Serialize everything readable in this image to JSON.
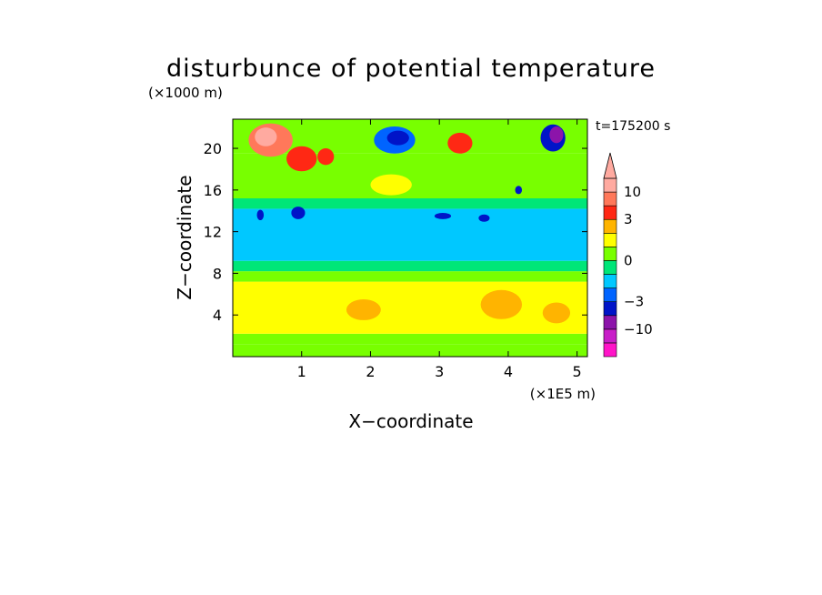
{
  "chart_data": {
    "type": "heatmap",
    "title": "disturbunce of potential temperature",
    "y_unit_label": "(×1000 m)",
    "x_unit_label": "(×1E5 m)",
    "xlabel": "X−coordinate",
    "ylabel": "Z−coordinate",
    "time_label": "t=175200 s",
    "xlim": [
      0,
      5.15
    ],
    "ylim": [
      0,
      22.8
    ],
    "x_ticks": [
      1,
      2,
      3,
      4,
      5
    ],
    "y_ticks": [
      4,
      8,
      12,
      16,
      20
    ],
    "x_tick_labels": [
      "1",
      "2",
      "3",
      "4",
      "5"
    ],
    "y_tick_labels": [
      "4",
      "8",
      "12",
      "16",
      "20"
    ],
    "bands": [
      {
        "z": [
          0,
          1.2
        ],
        "value": 0.5
      },
      {
        "z": [
          1.2,
          2.2
        ],
        "value": 0.9
      },
      {
        "z": [
          2.2,
          7.2
        ],
        "value": 1.4
      },
      {
        "z": [
          7.2,
          8.2
        ],
        "value": 0.5
      },
      {
        "z": [
          8.2,
          9.2
        ],
        "value": -0.4
      },
      {
        "z": [
          9.2,
          14.2
        ],
        "value": -1.2
      },
      {
        "z": [
          14.2,
          15.2
        ],
        "value": -0.4
      },
      {
        "z": [
          15.2,
          19.5
        ],
        "value": 0.8
      },
      {
        "z": [
          19.5,
          22.8
        ],
        "value": 0.5
      }
    ],
    "anomalies": [
      {
        "x": 0.55,
        "z": 20.8,
        "rx": 0.32,
        "rz": 1.6,
        "value": 6
      },
      {
        "x": 0.48,
        "z": 21.1,
        "rx": 0.16,
        "rz": 0.9,
        "value": 12
      },
      {
        "x": 1.0,
        "z": 19.0,
        "rx": 0.22,
        "rz": 1.2,
        "value": 3
      },
      {
        "x": 1.35,
        "z": 19.2,
        "rx": 0.12,
        "rz": 0.8,
        "value": 4
      },
      {
        "x": 2.35,
        "z": 20.8,
        "rx": 0.3,
        "rz": 1.3,
        "value": -3
      },
      {
        "x": 2.4,
        "z": 21.0,
        "rx": 0.16,
        "rz": 0.7,
        "value": -5
      },
      {
        "x": 4.65,
        "z": 21.0,
        "rx": 0.18,
        "rz": 1.3,
        "value": -3.5
      },
      {
        "x": 4.7,
        "z": 21.3,
        "rx": 0.1,
        "rz": 0.8,
        "value": -8
      },
      {
        "x": 3.3,
        "z": 20.5,
        "rx": 0.18,
        "rz": 1.0,
        "value": 3
      },
      {
        "x": 2.3,
        "z": 16.5,
        "rx": 0.3,
        "rz": 1.0,
        "value": 1.5
      },
      {
        "x": 0.4,
        "z": 13.6,
        "rx": 0.05,
        "rz": 0.5,
        "value": -3.2
      },
      {
        "x": 0.95,
        "z": 13.8,
        "rx": 0.1,
        "rz": 0.6,
        "value": -3.2
      },
      {
        "x": 3.05,
        "z": 13.5,
        "rx": 0.12,
        "rz": 0.3,
        "value": -3.2
      },
      {
        "x": 3.65,
        "z": 13.3,
        "rx": 0.08,
        "rz": 0.35,
        "value": -3.2
      },
      {
        "x": 4.15,
        "z": 16.0,
        "rx": 0.05,
        "rz": 0.4,
        "value": -3.2
      },
      {
        "x": 1.9,
        "z": 4.5,
        "rx": 0.25,
        "rz": 1.0,
        "value": 2
      },
      {
        "x": 3.9,
        "z": 5.0,
        "rx": 0.3,
        "rz": 1.4,
        "value": 2
      },
      {
        "x": 4.7,
        "z": 4.2,
        "rx": 0.2,
        "rz": 1.0,
        "value": 2
      }
    ],
    "colorbar": {
      "levels": [
        -12,
        -10,
        -5,
        -3,
        -2,
        -1,
        0,
        1,
        2,
        3,
        5,
        10,
        12
      ],
      "colors": [
        "#ff14c8",
        "#c81ec8",
        "#8c14aa",
        "#0014c8",
        "#0064ff",
        "#00c8ff",
        "#00e678",
        "#78ff00",
        "#ffff00",
        "#ffb400",
        "#ff2814",
        "#ff785a",
        "#ffaaa0"
      ],
      "tick_labels": [
        {
          "label": "10",
          "value": 10
        },
        {
          "label": "3",
          "value": 3
        },
        {
          "label": "0",
          "value": 0
        },
        {
          "label": "−3",
          "value": -3
        },
        {
          "label": "−10",
          "value": -10
        }
      ]
    }
  }
}
